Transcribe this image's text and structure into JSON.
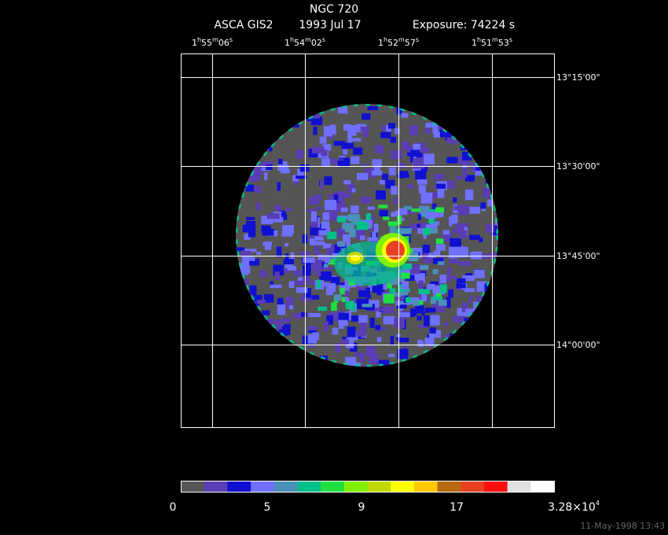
{
  "header": {
    "title": "NGC 720",
    "instrument": "ASCA GIS2",
    "date": "1993 Jul 17",
    "exposure": "Exposure: 74224 s"
  },
  "ra_labels": [
    [
      "1",
      "h",
      "55",
      "m",
      "06",
      "s"
    ],
    [
      "1",
      "h",
      "54",
      "m",
      "02",
      "s"
    ],
    [
      "1",
      "h",
      "52",
      "m",
      "57",
      "s"
    ],
    [
      "1",
      "h",
      "51",
      "m",
      "53",
      "s"
    ]
  ],
  "dec_labels": [
    "13°15'00\"",
    "13°30'00\"",
    "13°45'00\"",
    "14°00'00\""
  ],
  "colorbar": {
    "colors": [
      "#555555",
      "#5a3cb4",
      "#1010d0",
      "#7070ff",
      "#4a90b8",
      "#00c08a",
      "#20e040",
      "#80f000",
      "#c0d800",
      "#ffff00",
      "#ffc800",
      "#b86a10",
      "#e84020",
      "#ff1010",
      "#e0e0e0",
      "#ffffff"
    ],
    "labels": [
      "0",
      "5",
      "9",
      "17",
      [
        "3.28×10",
        "4"
      ]
    ]
  },
  "timestamp": "11-May-1998 13:43"
}
